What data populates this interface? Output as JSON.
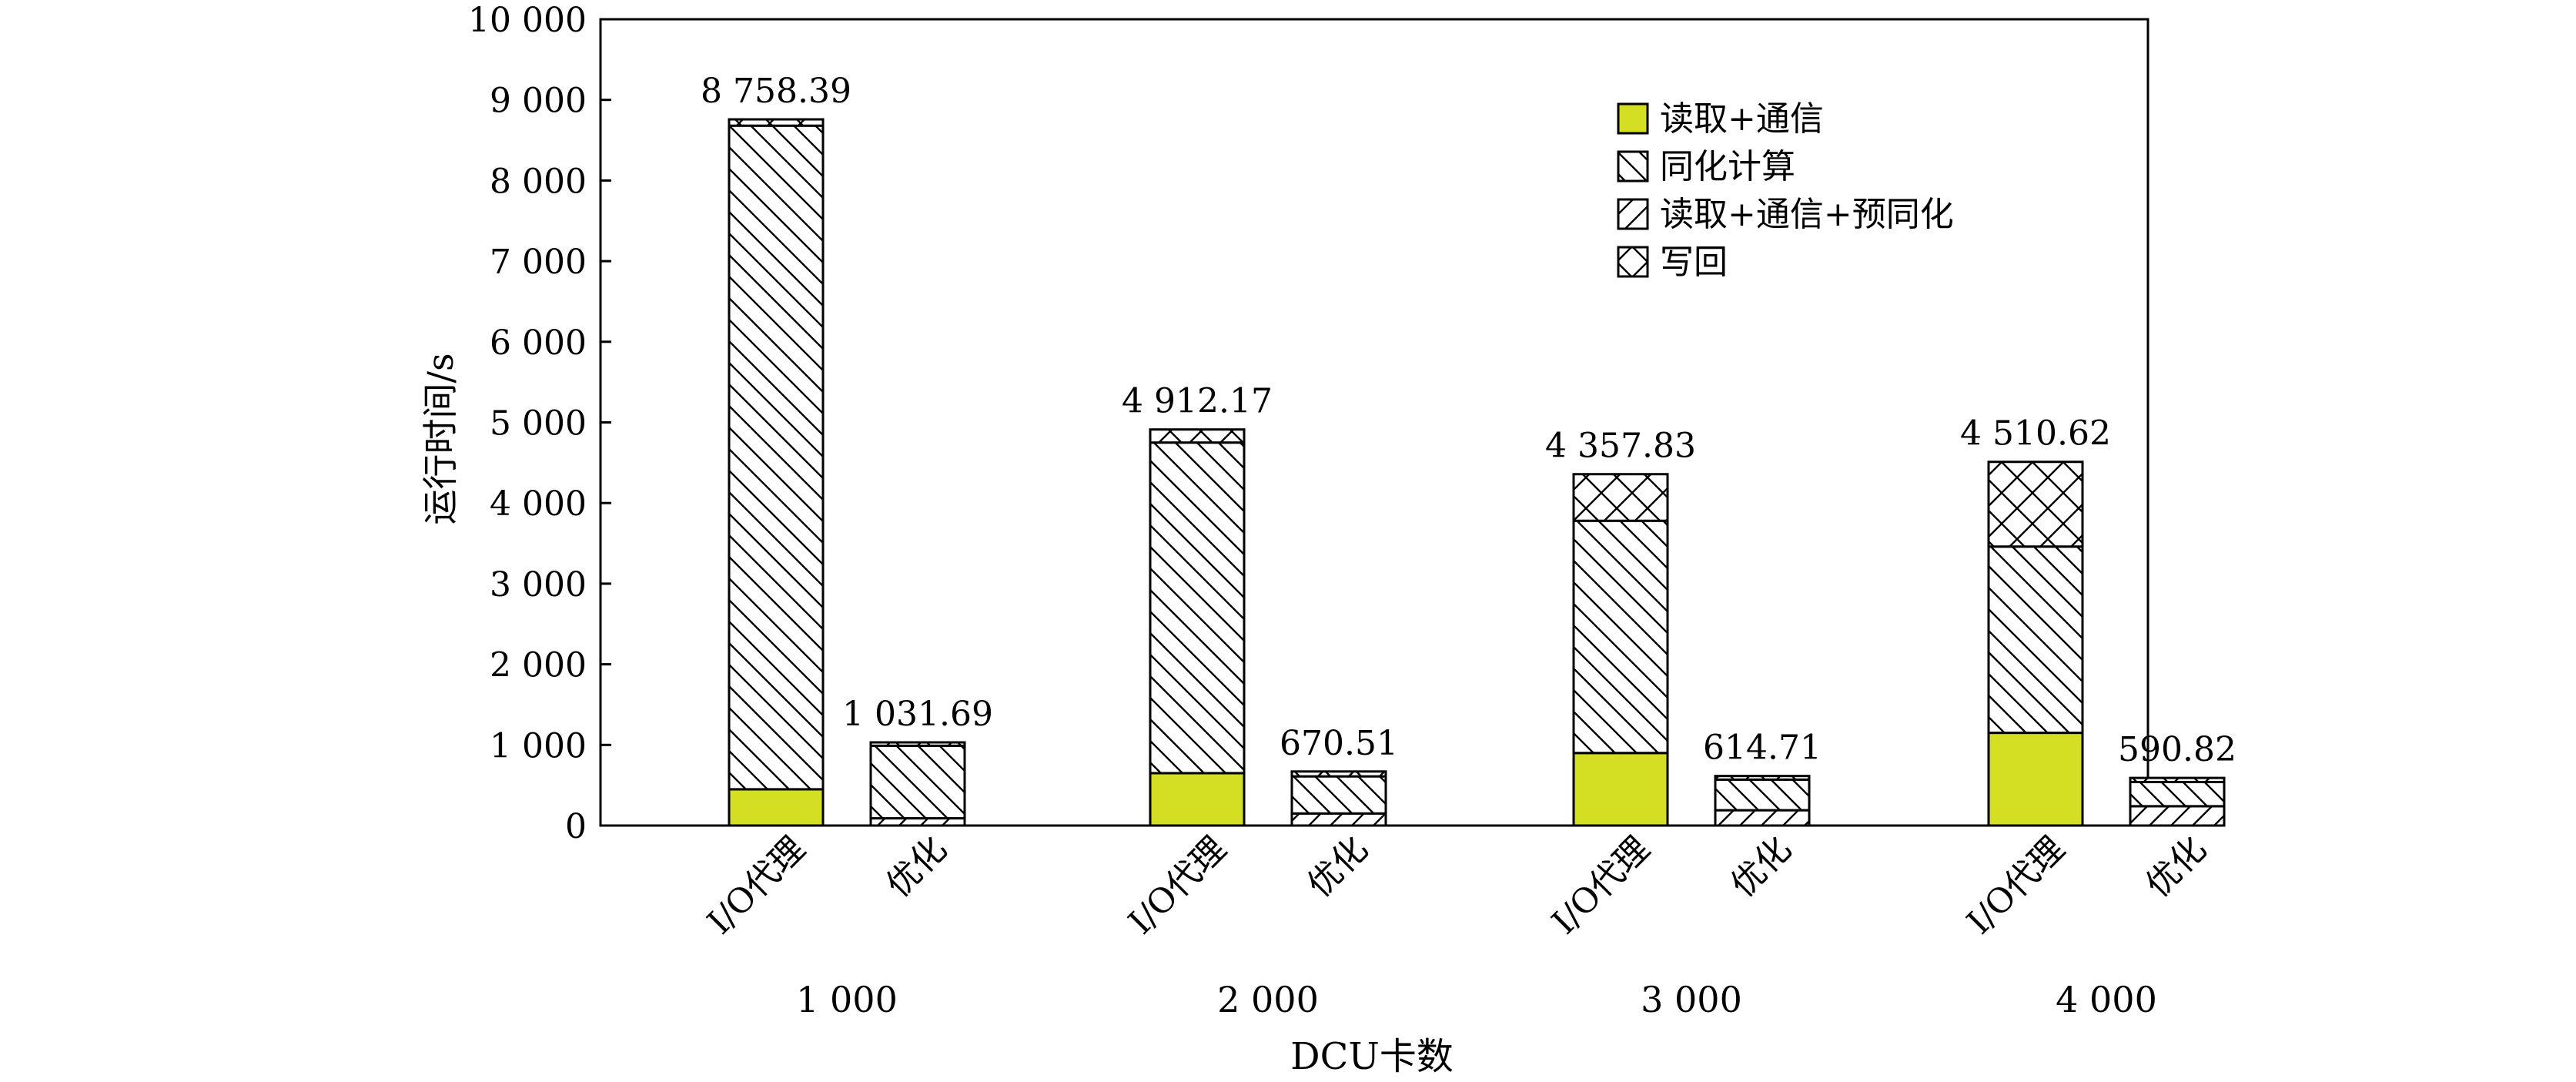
{
  "chart_data": {
    "type": "bar",
    "stacked": true,
    "ylabel": "运行时间/s",
    "xlabel": "DCU卡数",
    "ylim": [
      0,
      10000
    ],
    "yticks": [
      0,
      1000,
      2000,
      3000,
      4000,
      5000,
      6000,
      7000,
      8000,
      9000,
      10000
    ],
    "ytick_labels": [
      "0",
      "1 000",
      "2 000",
      "3 000",
      "4 000",
      "5 000",
      "6 000",
      "7 000",
      "8 000",
      "9 000",
      "10 000"
    ],
    "groups": [
      "1 000",
      "2 000",
      "3 000",
      "4 000"
    ],
    "bar_labels": [
      "I/O代理",
      "优化"
    ],
    "colors": {
      "read_comm": "#d4de22",
      "outline": "#000000"
    },
    "legend": {
      "placement": "top-right",
      "items": [
        {
          "key": "read_comm",
          "label": "读取+通信",
          "pattern": "solid"
        },
        {
          "key": "assim",
          "label": "同化计算",
          "pattern": "backslash"
        },
        {
          "key": "read_comm_pre",
          "label": "读取+通信+预同化",
          "pattern": "slash"
        },
        {
          "key": "writeback",
          "label": "写回",
          "pattern": "cross"
        }
      ]
    },
    "bars": [
      {
        "group": "1 000",
        "label": "I/O代理",
        "total_label": "8 758.39",
        "segments": [
          {
            "key": "read_comm",
            "value": 450
          },
          {
            "key": "assim",
            "value": 8230
          },
          {
            "key": "writeback",
            "value": 78.39
          }
        ]
      },
      {
        "group": "1 000",
        "label": "优化",
        "total_label": "1 031.69",
        "segments": [
          {
            "key": "read_comm_pre",
            "value": 90
          },
          {
            "key": "assim",
            "value": 900
          },
          {
            "key": "writeback",
            "value": 41.69
          }
        ]
      },
      {
        "group": "2 000",
        "label": "I/O代理",
        "total_label": "4 912.17",
        "segments": [
          {
            "key": "read_comm",
            "value": 650
          },
          {
            "key": "assim",
            "value": 4100
          },
          {
            "key": "writeback",
            "value": 162.17
          }
        ]
      },
      {
        "group": "2 000",
        "label": "优化",
        "total_label": "670.51",
        "segments": [
          {
            "key": "read_comm_pre",
            "value": 150
          },
          {
            "key": "assim",
            "value": 460
          },
          {
            "key": "writeback",
            "value": 60.51
          }
        ]
      },
      {
        "group": "3 000",
        "label": "I/O代理",
        "total_label": "4 357.83",
        "segments": [
          {
            "key": "read_comm",
            "value": 900
          },
          {
            "key": "assim",
            "value": 2880
          },
          {
            "key": "writeback",
            "value": 577.83
          }
        ]
      },
      {
        "group": "3 000",
        "label": "优化",
        "total_label": "614.71",
        "segments": [
          {
            "key": "read_comm_pre",
            "value": 190
          },
          {
            "key": "assim",
            "value": 380
          },
          {
            "key": "writeback",
            "value": 44.71
          }
        ]
      },
      {
        "group": "4 000",
        "label": "I/O代理",
        "total_label": "4 510.62",
        "segments": [
          {
            "key": "read_comm",
            "value": 1150
          },
          {
            "key": "assim",
            "value": 2310
          },
          {
            "key": "writeback",
            "value": 1050.62
          }
        ]
      },
      {
        "group": "4 000",
        "label": "优化",
        "total_label": "590.82",
        "segments": [
          {
            "key": "read_comm_pre",
            "value": 240
          },
          {
            "key": "assim",
            "value": 300
          },
          {
            "key": "writeback",
            "value": 50.82
          }
        ]
      }
    ]
  }
}
